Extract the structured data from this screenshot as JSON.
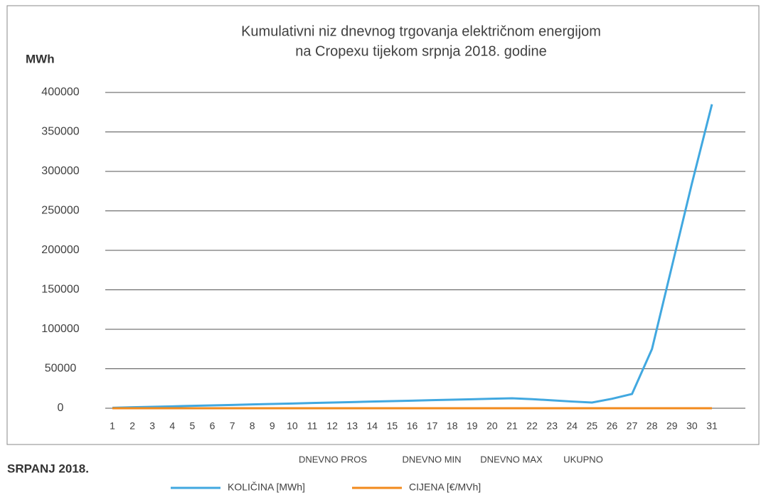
{
  "chart_data": {
    "type": "line",
    "title_lines": [
      "Kumulativni niz dnevnog trgovanja električnom energijom",
      "na Cropexu tijekom srpnja 2018. godine"
    ],
    "y_label": "MWh",
    "period_label": "SRPANJ 2018.",
    "extra_labels": [
      "DNEVNO PROS",
      "DNEVNO MIN",
      "DNEVNO MAX",
      "UKUPNO"
    ],
    "categories": [
      "1",
      "2",
      "3",
      "4",
      "5",
      "6",
      "7",
      "8",
      "9",
      "10",
      "11",
      "12",
      "13",
      "14",
      "15",
      "16",
      "17",
      "18",
      "19",
      "20",
      "21",
      "22",
      "23",
      "24",
      "25",
      "26",
      "27",
      "28",
      "29",
      "30",
      "31"
    ],
    "series": [
      {
        "name": "KOLIČINA [MWh]",
        "color": "#41a8e0",
        "values": [
          600,
          1200,
          1800,
          2400,
          3000,
          3600,
          4200,
          4800,
          5400,
          6000,
          6600,
          7200,
          7800,
          8400,
          9000,
          9600,
          10200,
          10800,
          11400,
          12000,
          12600,
          11500,
          10000,
          8500,
          7200,
          12000,
          18000,
          75000,
          180000,
          285000,
          385000
        ]
      },
      {
        "name": "CIJENA [€/MVh]",
        "color": "#f28a1c",
        "values": [
          50,
          50,
          50,
          50,
          50,
          50,
          50,
          50,
          50,
          50,
          50,
          50,
          50,
          50,
          50,
          50,
          50,
          50,
          50,
          50,
          50,
          50,
          50,
          50,
          50,
          50,
          50,
          50,
          50,
          50,
          50
        ]
      }
    ],
    "ylim": [
      0,
      400000
    ],
    "yticks": [
      0,
      50000,
      100000,
      150000,
      200000,
      250000,
      300000,
      350000,
      400000
    ],
    "grid": true
  }
}
